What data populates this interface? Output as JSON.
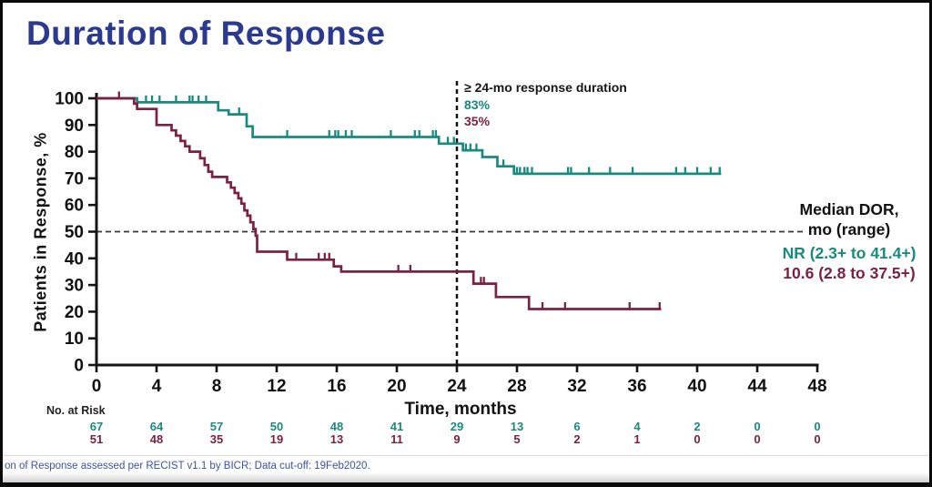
{
  "title": "Duration of Response",
  "annotation": {
    "label": "≥ 24-mo response duration",
    "teal_pct": "83%",
    "maroon_pct": "35%"
  },
  "median_panel": {
    "header_line1": "Median  DOR,",
    "header_line2": "mo (range)",
    "teal_value": "NR (2.3+ to 41.4+)",
    "maroon_value": "10.6 (2.8 to 37.5+)"
  },
  "at_risk_label": "No. at Risk",
  "footer": "on of Response assessed per RECIST v1.1 by BICR;  Data cut-off:  19Feb2020.",
  "colors": {
    "title_navy": "#2b3a8e",
    "teal": "#188a7e",
    "maroon": "#7a2145",
    "axis": "#151515",
    "footer_blue": "#3d52a4"
  },
  "chart_data": {
    "type": "line",
    "subtype": "kaplan-meier-step",
    "title": "Duration of Response",
    "xlabel": "Time, months",
    "ylabel": "Patients  in  Response,  %",
    "xlim": [
      0,
      48
    ],
    "ylim": [
      0,
      100
    ],
    "x_ticks": [
      0,
      4,
      8,
      12,
      16,
      20,
      24,
      28,
      32,
      36,
      40,
      44,
      48
    ],
    "y_ticks": [
      0,
      10,
      20,
      30,
      40,
      50,
      60,
      70,
      80,
      90,
      100
    ],
    "grid": false,
    "reference_lines": {
      "horizontal_pct": 50,
      "vertical_month": 24
    },
    "rates_at_24mo": {
      "teal": 83,
      "maroon": 35
    },
    "series": [
      {
        "name": "teal",
        "color": "#188a7e",
        "median_dor": "NR (2.3+ to 41.4+)",
        "points": [
          [
            0,
            100
          ],
          [
            2.7,
            100
          ],
          [
            2.7,
            98.5
          ],
          [
            8.1,
            98.5
          ],
          [
            8.1,
            95.5
          ],
          [
            8.8,
            95.5
          ],
          [
            8.8,
            94
          ],
          [
            10.0,
            94
          ],
          [
            10.0,
            89.5
          ],
          [
            10.4,
            89.5
          ],
          [
            10.4,
            85.5
          ],
          [
            22.8,
            85.5
          ],
          [
            22.8,
            83
          ],
          [
            24.4,
            83
          ],
          [
            24.4,
            80.5
          ],
          [
            25.7,
            80.5
          ],
          [
            25.7,
            78
          ],
          [
            26.7,
            78
          ],
          [
            26.7,
            74.5
          ],
          [
            27.8,
            74.5
          ],
          [
            27.8,
            71.7
          ],
          [
            41.6,
            71.7
          ]
        ],
        "censors": [
          [
            3.3,
            98.5
          ],
          [
            3.7,
            98.5
          ],
          [
            4.2,
            98.5
          ],
          [
            5.3,
            98.5
          ],
          [
            6.2,
            98.5
          ],
          [
            6.4,
            98.5
          ],
          [
            6.8,
            98.5
          ],
          [
            7.3,
            98.5
          ],
          [
            9.5,
            94
          ],
          [
            12.7,
            85.5
          ],
          [
            15.5,
            85.5
          ],
          [
            15.9,
            85.5
          ],
          [
            16.1,
            85.5
          ],
          [
            16.6,
            85.5
          ],
          [
            17.0,
            85.5
          ],
          [
            19.6,
            85.5
          ],
          [
            21.2,
            85.5
          ],
          [
            21.5,
            85.5
          ],
          [
            22.4,
            85.5
          ],
          [
            22.6,
            85.5
          ],
          [
            23.4,
            83
          ],
          [
            23.8,
            83
          ],
          [
            24.6,
            80.5
          ],
          [
            24.9,
            80.5
          ],
          [
            25.3,
            80.5
          ],
          [
            27.1,
            74.5
          ],
          [
            28.0,
            71.7
          ],
          [
            28.2,
            71.7
          ],
          [
            28.5,
            71.7
          ],
          [
            28.7,
            71.7
          ],
          [
            29.0,
            71.7
          ],
          [
            31.4,
            71.7
          ],
          [
            31.6,
            71.7
          ],
          [
            32.8,
            71.7
          ],
          [
            34.2,
            71.7
          ],
          [
            35.7,
            71.7
          ],
          [
            38.6,
            71.7
          ],
          [
            39.2,
            71.7
          ],
          [
            40.0,
            71.7
          ],
          [
            40.9,
            71.7
          ],
          [
            41.5,
            71.7
          ]
        ],
        "at_risk": [
          67,
          64,
          57,
          50,
          48,
          41,
          29,
          13,
          6,
          4,
          2,
          0,
          0
        ]
      },
      {
        "name": "maroon",
        "color": "#7a2145",
        "median_dor": "10.6 (2.8 to 37.5+)",
        "points": [
          [
            0,
            100
          ],
          [
            2.5,
            100
          ],
          [
            2.5,
            98
          ],
          [
            2.7,
            98
          ],
          [
            2.7,
            96
          ],
          [
            4.0,
            96
          ],
          [
            4.0,
            90
          ],
          [
            5.0,
            90
          ],
          [
            5.0,
            88
          ],
          [
            5.3,
            88
          ],
          [
            5.3,
            86
          ],
          [
            5.6,
            86
          ],
          [
            5.6,
            84
          ],
          [
            5.9,
            84
          ],
          [
            5.9,
            82
          ],
          [
            6.2,
            82
          ],
          [
            6.2,
            80
          ],
          [
            6.9,
            80
          ],
          [
            6.9,
            77.5
          ],
          [
            7.2,
            77.5
          ],
          [
            7.2,
            75
          ],
          [
            7.45,
            75
          ],
          [
            7.45,
            72.5
          ],
          [
            7.7,
            72.5
          ],
          [
            7.7,
            70.5
          ],
          [
            8.7,
            70.5
          ],
          [
            8.7,
            68.5
          ],
          [
            8.95,
            68.5
          ],
          [
            8.95,
            66.5
          ],
          [
            9.2,
            66.5
          ],
          [
            9.2,
            64.5
          ],
          [
            9.45,
            64.5
          ],
          [
            9.45,
            62.5
          ],
          [
            9.65,
            62.5
          ],
          [
            9.65,
            60.5
          ],
          [
            9.85,
            60.5
          ],
          [
            9.85,
            58
          ],
          [
            10.05,
            58
          ],
          [
            10.05,
            56
          ],
          [
            10.25,
            56
          ],
          [
            10.25,
            53.5
          ],
          [
            10.45,
            53.5
          ],
          [
            10.45,
            51
          ],
          [
            10.6,
            51
          ],
          [
            10.6,
            48.5
          ],
          [
            10.7,
            48.5
          ],
          [
            10.7,
            42.5
          ],
          [
            12.7,
            42.5
          ],
          [
            12.7,
            39.5
          ],
          [
            15.8,
            39.5
          ],
          [
            15.8,
            37
          ],
          [
            16.3,
            37
          ],
          [
            16.3,
            35
          ],
          [
            25.1,
            35
          ],
          [
            25.1,
            30.5
          ],
          [
            26.6,
            30.5
          ],
          [
            26.6,
            25.5
          ],
          [
            28.8,
            25.5
          ],
          [
            28.8,
            21
          ],
          [
            37.6,
            21
          ]
        ],
        "censors": [
          [
            1.5,
            100
          ],
          [
            13.3,
            39.5
          ],
          [
            14.8,
            39.5
          ],
          [
            15.2,
            39.5
          ],
          [
            15.5,
            39.5
          ],
          [
            20.1,
            35
          ],
          [
            20.9,
            35
          ],
          [
            25.6,
            30.5
          ],
          [
            25.8,
            30.5
          ],
          [
            29.7,
            21
          ],
          [
            31.2,
            21
          ],
          [
            35.5,
            21
          ],
          [
            37.5,
            21
          ]
        ],
        "at_risk": [
          51,
          48,
          35,
          19,
          13,
          11,
          9,
          5,
          2,
          1,
          0,
          0,
          0
        ]
      }
    ]
  }
}
